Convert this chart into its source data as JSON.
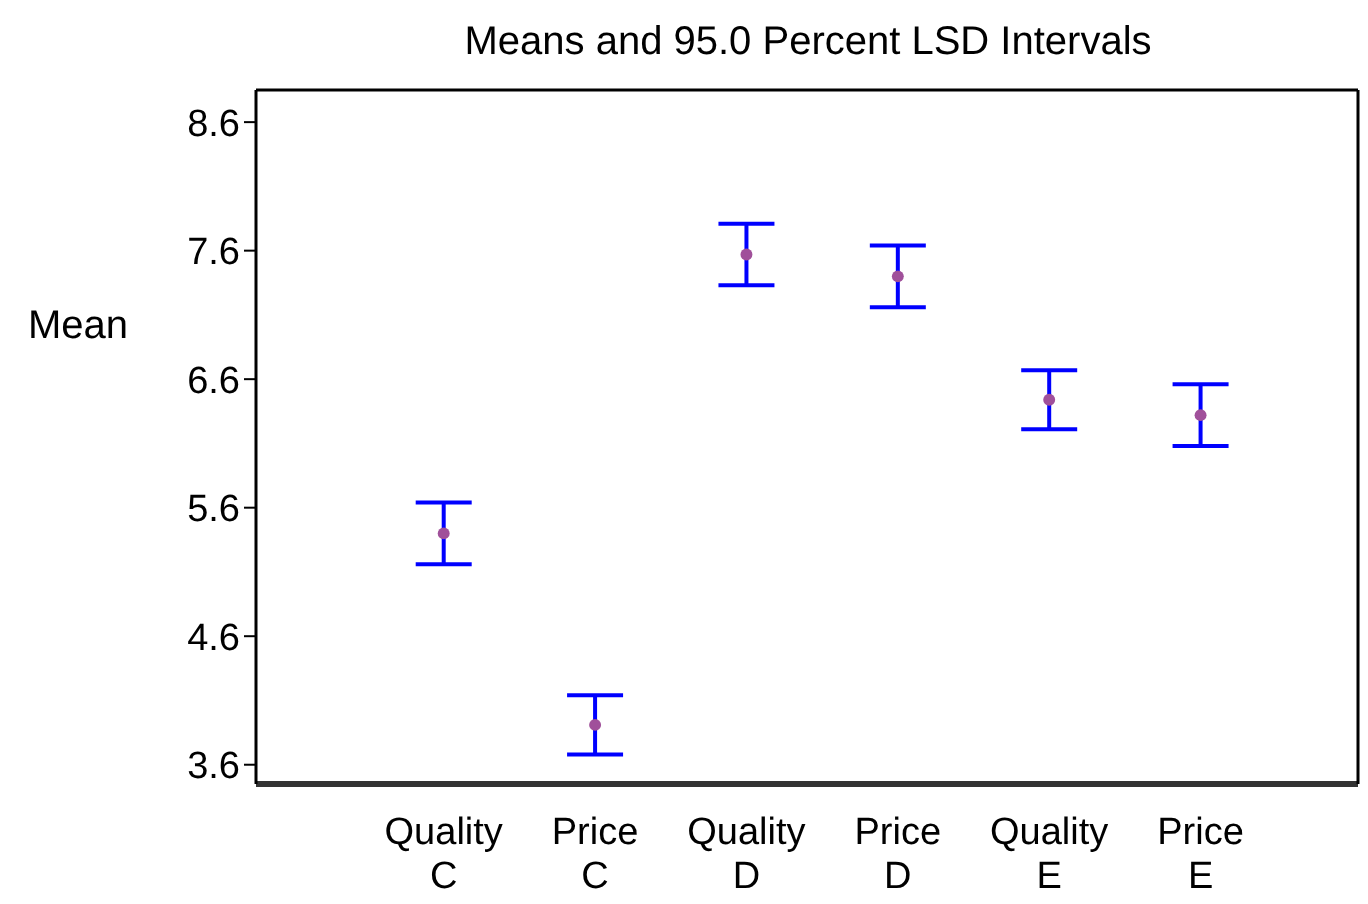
{
  "chart_data": {
    "type": "scatter",
    "title": "Means and 95.0 Percent LSD Intervals",
    "ylabel": "Mean",
    "categories": [
      "Quality C",
      "Price C",
      "Quality D",
      "Price D",
      "Quality E",
      "Price E"
    ],
    "series": [
      {
        "color": "#a0509a",
        "values": [
          5.4,
          3.91,
          7.57,
          7.4,
          6.44,
          6.32
        ],
        "errors": [
          0.24,
          0.23,
          0.24,
          0.24,
          0.23,
          0.24
        ]
      }
    ],
    "ylim": [
      3.45,
      8.85
    ],
    "yticks": [
      3.6,
      4.6,
      5.6,
      6.6,
      7.6,
      8.6
    ],
    "marker": "circle",
    "grid": false
  }
}
